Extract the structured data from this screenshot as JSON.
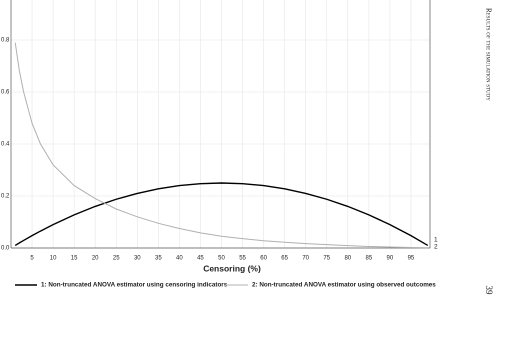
{
  "chart_data": {
    "type": "line",
    "x_label": "Censoring (%)",
    "x": [
      1,
      2,
      3,
      5,
      7,
      10,
      15,
      20,
      25,
      30,
      35,
      40,
      45,
      50,
      55,
      60,
      65,
      70,
      75,
      80,
      85,
      90,
      95,
      99
    ],
    "series": [
      {
        "name": "1: Non-truncated ANOVA estimator using censoring indicators",
        "end_label": "1",
        "color": "#000000",
        "values": [
          0.0099,
          0.0196,
          0.0291,
          0.0475,
          0.0651,
          0.09,
          0.1275,
          0.16,
          0.1875,
          0.21,
          0.2275,
          0.24,
          0.2475,
          0.25,
          0.2475,
          0.24,
          0.2275,
          0.21,
          0.1875,
          0.16,
          0.1275,
          0.09,
          0.0475,
          0.0099
        ]
      },
      {
        "name": "2: Non-truncated ANOVA estimator using observed outcomes",
        "end_label": "2",
        "color": "#b0b0b0",
        "values": [
          0.79,
          0.68,
          0.6,
          0.48,
          0.4,
          0.32,
          0.24,
          0.19,
          0.15,
          0.12,
          0.095,
          0.075,
          0.058,
          0.045,
          0.036,
          0.028,
          0.022,
          0.017,
          0.013,
          0.009,
          0.006,
          0.004,
          0.002,
          0.001
        ]
      }
    ],
    "xlim": [
      0,
      100
    ],
    "xticks": [
      5,
      10,
      15,
      20,
      25,
      30,
      35,
      40,
      45,
      50,
      55,
      60,
      65,
      70,
      75,
      80,
      85,
      90,
      95
    ],
    "ylim": [
      0,
      0.95
    ],
    "yticks": [
      {
        "value": 0,
        "label": "0.0"
      },
      0.2,
      0.4,
      0.6,
      0.8
    ],
    "grid": true,
    "legend": "bottom"
  },
  "page": {
    "running_head": "Results of the simulation study",
    "page_number": "39"
  }
}
